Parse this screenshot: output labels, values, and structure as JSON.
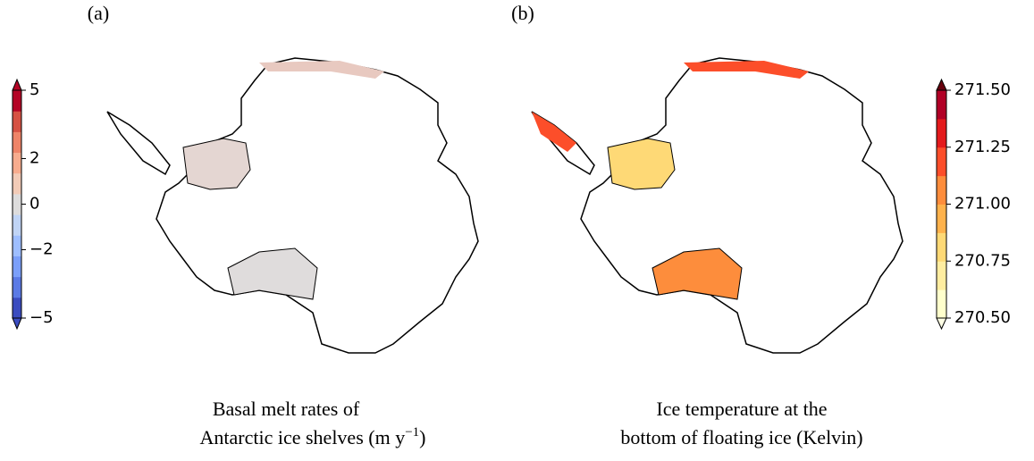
{
  "panels": [
    {
      "label": "(a)",
      "caption": [
        "Basal melt rates of",
        "Antarctic ice shelves (m y",
        "−1",
        ")"
      ],
      "colorbar": {
        "lim": [
          -5,
          5
        ],
        "ticks": [
          {
            "value": -5,
            "label": "−5"
          },
          {
            "value": -2,
            "label": "−2"
          },
          0,
          2,
          5
        ],
        "colors": [
          "#3b4cc0",
          "#5b7ae5",
          "#7b9ff9",
          "#9ebeff",
          "#c0d4f5",
          "#dddcdc",
          "#f2cbb7",
          "#f7ac8e",
          "#ee8468",
          "#d65244",
          "#b40426"
        ],
        "under": "#3b4cc0",
        "over": "#b40426"
      }
    },
    {
      "label": "(b)",
      "caption": [
        "Ice temperature at the",
        "bottom of floating ice (Kelvin)"
      ],
      "colorbar": {
        "lim": [
          270.5,
          271.5
        ],
        "ticks": [
          {
            "value": 270.5,
            "label": "270.50"
          },
          270.75,
          {
            "value": 271,
            "label": "271.00"
          },
          271.25,
          {
            "value": 271.5,
            "label": "271.50"
          }
        ],
        "colors": [
          "#ffffcc",
          "#ffeda0",
          "#fed976",
          "#feb24c",
          "#fd8d3c",
          "#fc4e2a",
          "#e31a1c",
          "#b10026"
        ],
        "under": "#ffffe5",
        "over": "#67000d"
      }
    }
  ]
}
